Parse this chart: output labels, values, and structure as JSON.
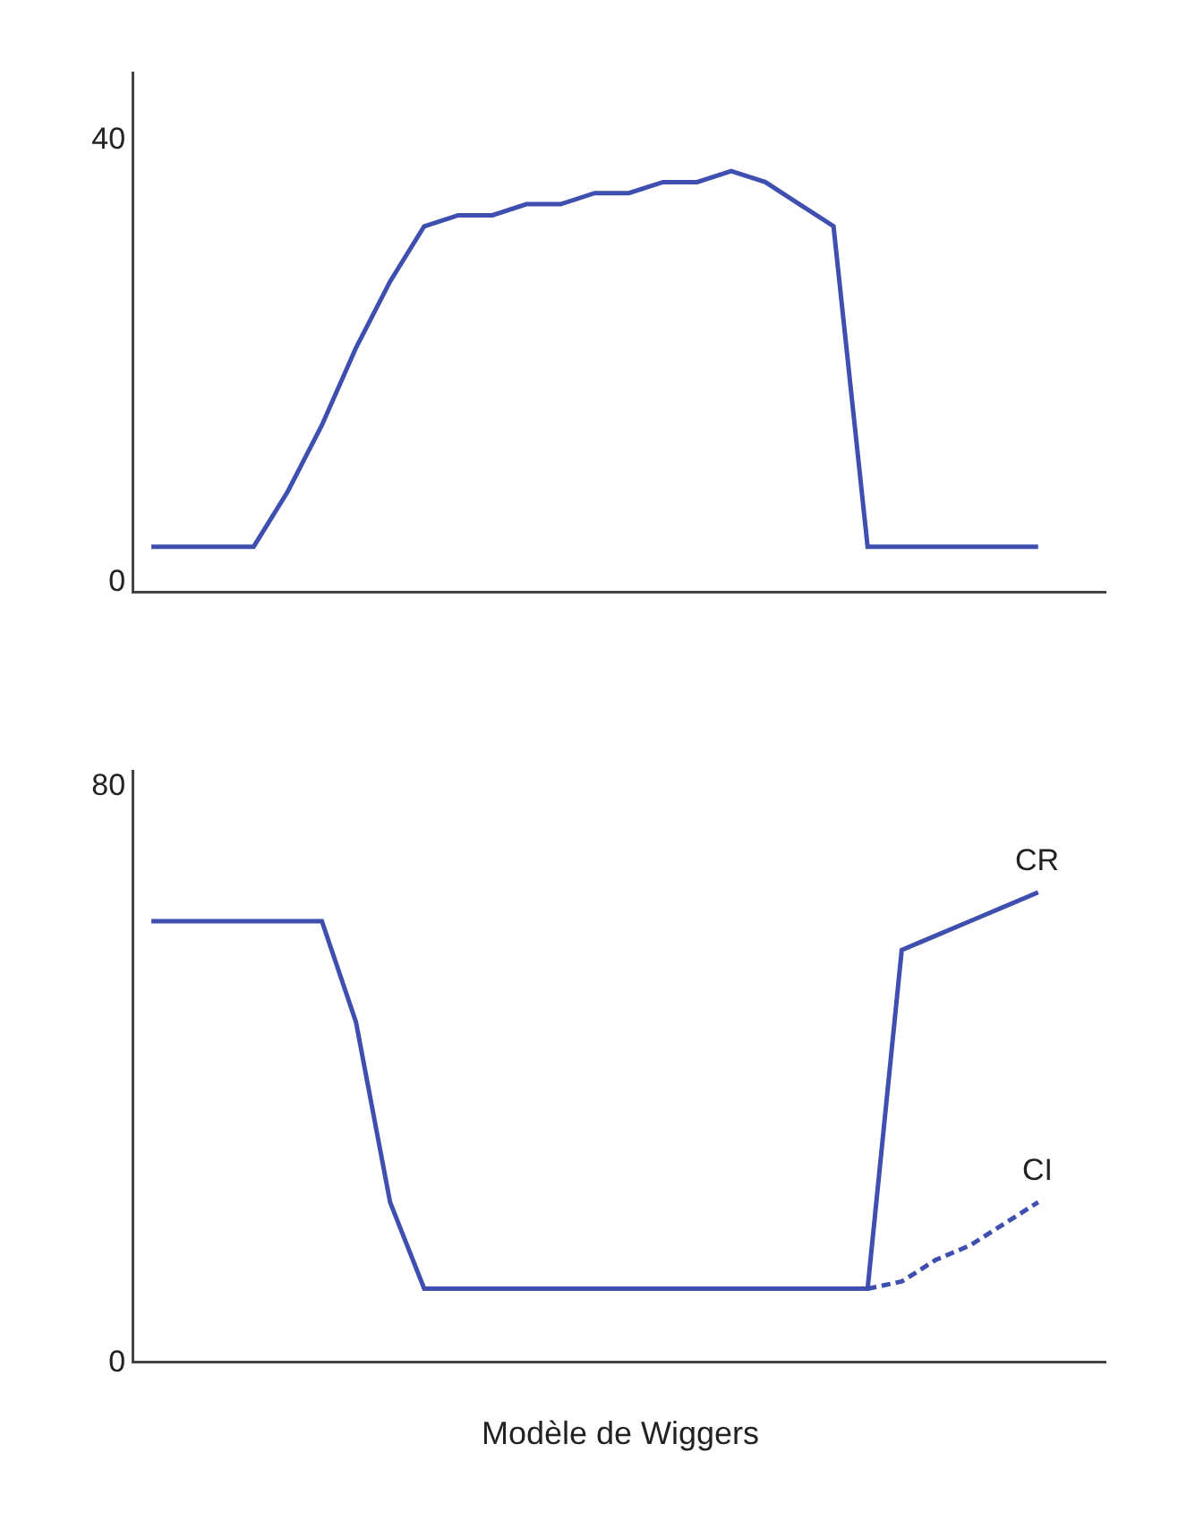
{
  "chart_data": [
    {
      "type": "line",
      "categories": [
        null,
        null,
        null,
        null,
        null,
        null,
        null,
        null,
        null,
        null,
        null,
        null,
        null,
        null,
        null,
        null,
        null,
        null,
        null,
        null,
        null,
        null,
        null,
        null,
        null,
        null,
        null
      ],
      "series": [
        {
          "color": "#3f4fb0",
          "values": [
            3,
            3,
            3,
            3,
            8,
            14,
            21,
            27,
            32,
            33,
            33,
            34,
            34,
            35,
            35,
            36,
            36,
            37,
            36,
            34,
            32,
            3,
            3,
            3,
            3,
            3,
            3
          ]
        }
      ],
      "ylim": [
        -1,
        46
      ],
      "yticks": [
        0,
        40
      ],
      "grid": false,
      "legend": false,
      "marker": "none",
      "tick_labels": "y"
    },
    {
      "type": "line",
      "categories": [
        null,
        null,
        null,
        null,
        null,
        null,
        null,
        null,
        null,
        null,
        null,
        null,
        null,
        null,
        null,
        null,
        null,
        null,
        null,
        null,
        null,
        null,
        null,
        null,
        null,
        null,
        null
      ],
      "series": [
        {
          "name": "CR",
          "color": "#3f4fb0",
          "line_style": "solid",
          "values": [
            61,
            61,
            61,
            61,
            61,
            61,
            47,
            22,
            10,
            10,
            10,
            10,
            10,
            10,
            10,
            10,
            10,
            10,
            10,
            10,
            10,
            10,
            57,
            59,
            61,
            63,
            65
          ]
        },
        {
          "name": "CI",
          "color": "#3f4fb0",
          "line_style": "dashed",
          "values": [
            null,
            null,
            null,
            null,
            null,
            null,
            null,
            null,
            null,
            null,
            null,
            null,
            null,
            null,
            null,
            null,
            null,
            null,
            null,
            null,
            null,
            10,
            11,
            14,
            16,
            19,
            22
          ]
        }
      ],
      "xlabel": "Modèle de Wiggers",
      "ylim": [
        0,
        82
      ],
      "yticks": [
        0,
        80
      ],
      "grid": false,
      "legend": false,
      "marker": "none",
      "tick_labels": "y"
    }
  ]
}
